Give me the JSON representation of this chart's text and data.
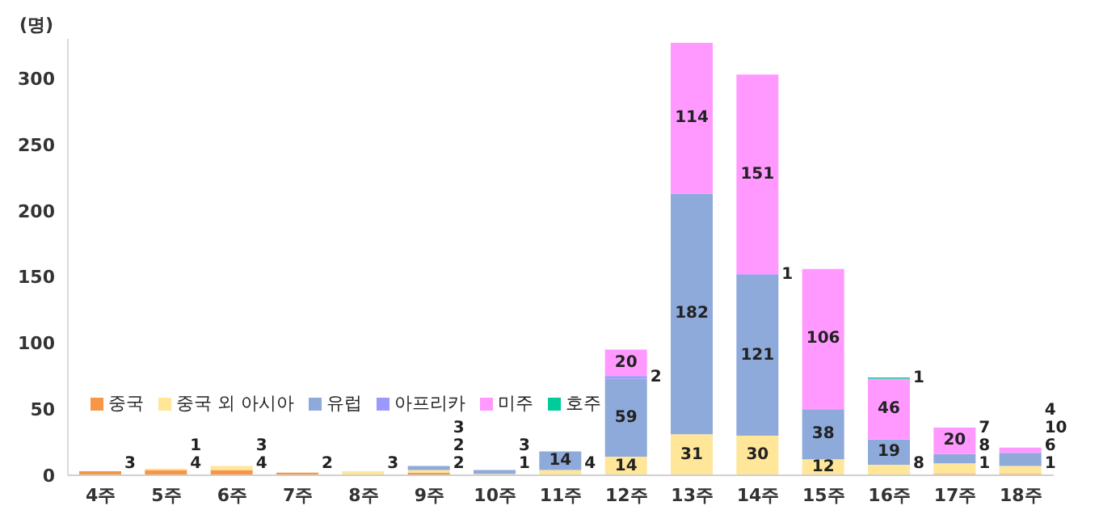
{
  "chart_data": {
    "type": "bar",
    "stacked": true,
    "ylabel": "(명)",
    "categories": [
      "4주",
      "5주",
      "6주",
      "7주",
      "8주",
      "9주",
      "10주",
      "11주",
      "12주",
      "13주",
      "14주",
      "15주",
      "16주",
      "17주",
      "18주"
    ],
    "series": [
      {
        "name": "중국",
        "color": "#f79646",
        "values": [
          3,
          4,
          4,
          2,
          null,
          2,
          null,
          null,
          null,
          null,
          null,
          null,
          null,
          1,
          1
        ]
      },
      {
        "name": "중국 외 아시아",
        "color": "#ffe699",
        "values": [
          null,
          1,
          3,
          null,
          3,
          2,
          1,
          4,
          14,
          31,
          30,
          12,
          8,
          8,
          6
        ]
      },
      {
        "name": "유럽",
        "color": "#8eaadb",
        "values": [
          null,
          null,
          null,
          null,
          null,
          3,
          3,
          14,
          59,
          182,
          121,
          38,
          19,
          7,
          10
        ]
      },
      {
        "name": "아프리카",
        "color": "#9999ff",
        "values": [
          null,
          null,
          null,
          null,
          null,
          null,
          null,
          null,
          2,
          null,
          1,
          null,
          null,
          null,
          null
        ]
      },
      {
        "name": "미주",
        "color": "#ff99ff",
        "values": [
          null,
          null,
          null,
          null,
          null,
          null,
          null,
          null,
          20,
          114,
          151,
          106,
          46,
          20,
          4
        ]
      },
      {
        "name": "호주",
        "color": "#00cc99",
        "values": [
          null,
          null,
          null,
          null,
          null,
          null,
          null,
          null,
          null,
          null,
          null,
          null,
          1,
          null,
          null
        ]
      }
    ],
    "ylim": [
      0,
      330
    ],
    "yticks": [
      0,
      50,
      100,
      150,
      200,
      250,
      300
    ],
    "grid": false,
    "legend": "bottom left",
    "data_labels": true
  }
}
